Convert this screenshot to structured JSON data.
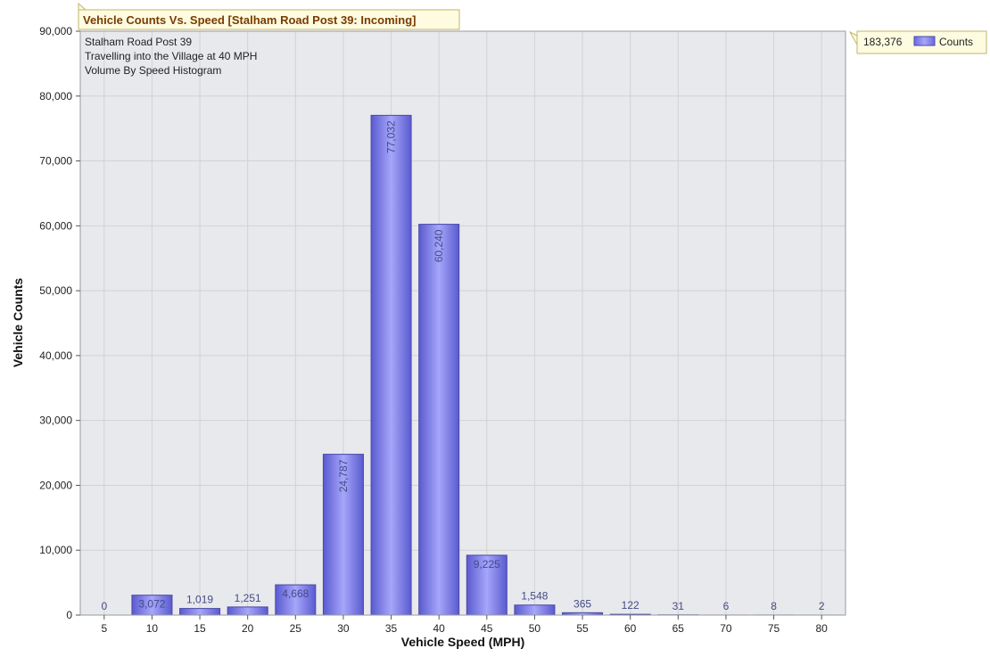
{
  "chart_data": {
    "type": "bar",
    "title": "Vehicle Counts Vs. Speed [Stalham Road Post 39: Incoming]",
    "info_lines": [
      "Stalham Road Post 39",
      "Travelling into the Village at 40 MPH",
      "Volume By Speed Histogram"
    ],
    "xlabel": "Vehicle Speed (MPH)",
    "ylabel": "Vehicle Counts",
    "ylim": [
      0,
      90000
    ],
    "yticks": [
      0,
      10000,
      20000,
      30000,
      40000,
      50000,
      60000,
      70000,
      80000,
      90000
    ],
    "ytick_labels": [
      "0",
      "10,000",
      "20,000",
      "30,000",
      "40,000",
      "50,000",
      "60,000",
      "70,000",
      "80,000",
      "90,000"
    ],
    "categories": [
      "5",
      "10",
      "15",
      "20",
      "25",
      "30",
      "35",
      "40",
      "45",
      "50",
      "55",
      "60",
      "65",
      "70",
      "75",
      "80"
    ],
    "series": [
      {
        "name": "Counts",
        "values": [
          0,
          3072,
          1019,
          1251,
          4668,
          24787,
          77032,
          60240,
          9225,
          1548,
          365,
          122,
          31,
          6,
          8,
          2
        ],
        "labels": [
          "0",
          "3,072",
          "1,019",
          "1,251",
          "4,668",
          "24,787",
          "77,032",
          "60,240",
          "9,225",
          "1,548",
          "365",
          "122",
          "31",
          "6",
          "8",
          "2"
        ]
      }
    ],
    "legend": {
      "position": "top-right",
      "total": "183,376",
      "entry": "Counts"
    },
    "grid": true,
    "colors": {
      "bar": "#7878e6",
      "bar_light": "#a6a6fa",
      "bar_edge": "#4a4aa8",
      "plot_bg": "#e8e9ec",
      "grid": "#d2d2d2",
      "callout_bg": "#fdfbe0",
      "callout_border": "#c2b56a",
      "title_color": "#7a3b00",
      "label_color": "#444a88"
    }
  }
}
